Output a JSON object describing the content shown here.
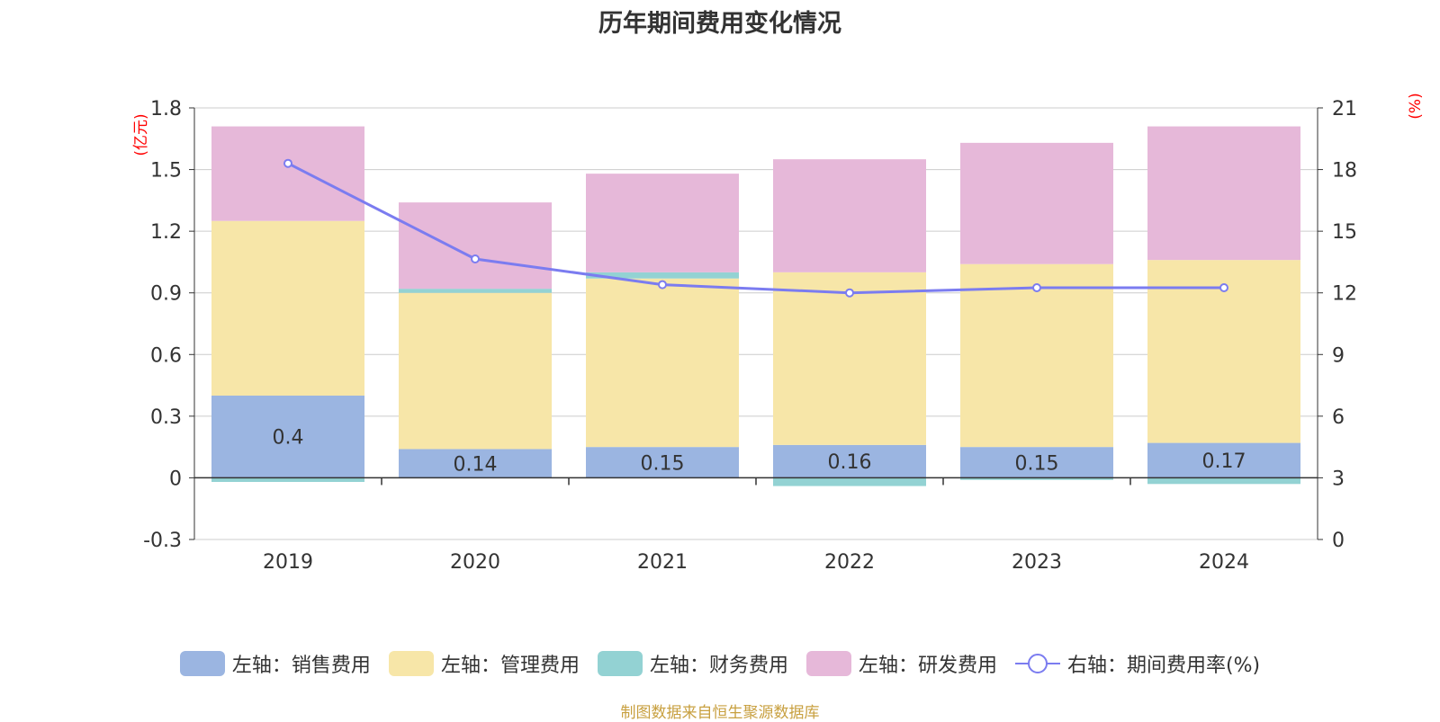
{
  "title": "历年期间费用变化情况",
  "source_note": "制图数据来自恒生聚源数据库",
  "colors": {
    "sales": "#9bb5e1",
    "admin": "#f7e6a8",
    "finance": "#93d2d3",
    "rnd": "#e6b8d9",
    "rate": "#7b7cf0",
    "axis_unit": "#ff0000",
    "text": "#333333"
  },
  "chart_data": {
    "type": "bar",
    "stacked": true,
    "categories": [
      "2019",
      "2020",
      "2021",
      "2022",
      "2023",
      "2024"
    ],
    "y_left": {
      "unit": "(亿元)",
      "ticks": [
        "1.8",
        "1.5",
        "1.2",
        "0.9",
        "0.6",
        "0.3",
        "0",
        "-0.3"
      ],
      "ylim": [
        -0.3,
        1.8
      ]
    },
    "y_right": {
      "unit": "(%)",
      "ticks": [
        "21",
        "18",
        "15",
        "12",
        "9",
        "6",
        "3",
        "0"
      ],
      "ylim": [
        0,
        21
      ]
    },
    "series": [
      {
        "key": "sales",
        "name": "左轴：销售费用",
        "axis": "left",
        "type": "bar",
        "values": [
          0.4,
          0.14,
          0.15,
          0.16,
          0.15,
          0.17
        ],
        "labels": [
          "0.4",
          "0.14",
          "0.15",
          "0.16",
          "0.15",
          "0.17"
        ]
      },
      {
        "key": "admin",
        "name": "左轴：管理费用",
        "axis": "left",
        "type": "bar",
        "values": [
          0.85,
          0.76,
          0.82,
          0.84,
          0.89,
          0.89
        ]
      },
      {
        "key": "finance",
        "name": "左轴：财务费用",
        "axis": "left",
        "type": "bar",
        "values": [
          -0.02,
          0.02,
          0.03,
          -0.04,
          -0.01,
          -0.03
        ]
      },
      {
        "key": "rnd",
        "name": "左轴：研发费用",
        "axis": "left",
        "type": "bar",
        "values": [
          0.46,
          0.42,
          0.48,
          0.55,
          0.59,
          0.65
        ]
      },
      {
        "key": "rate",
        "name": "右轴：期间费用率(%)",
        "axis": "right",
        "type": "line",
        "values": [
          18.3,
          13.65,
          12.4,
          12.0,
          12.25,
          12.25
        ]
      }
    ],
    "grid": true
  }
}
